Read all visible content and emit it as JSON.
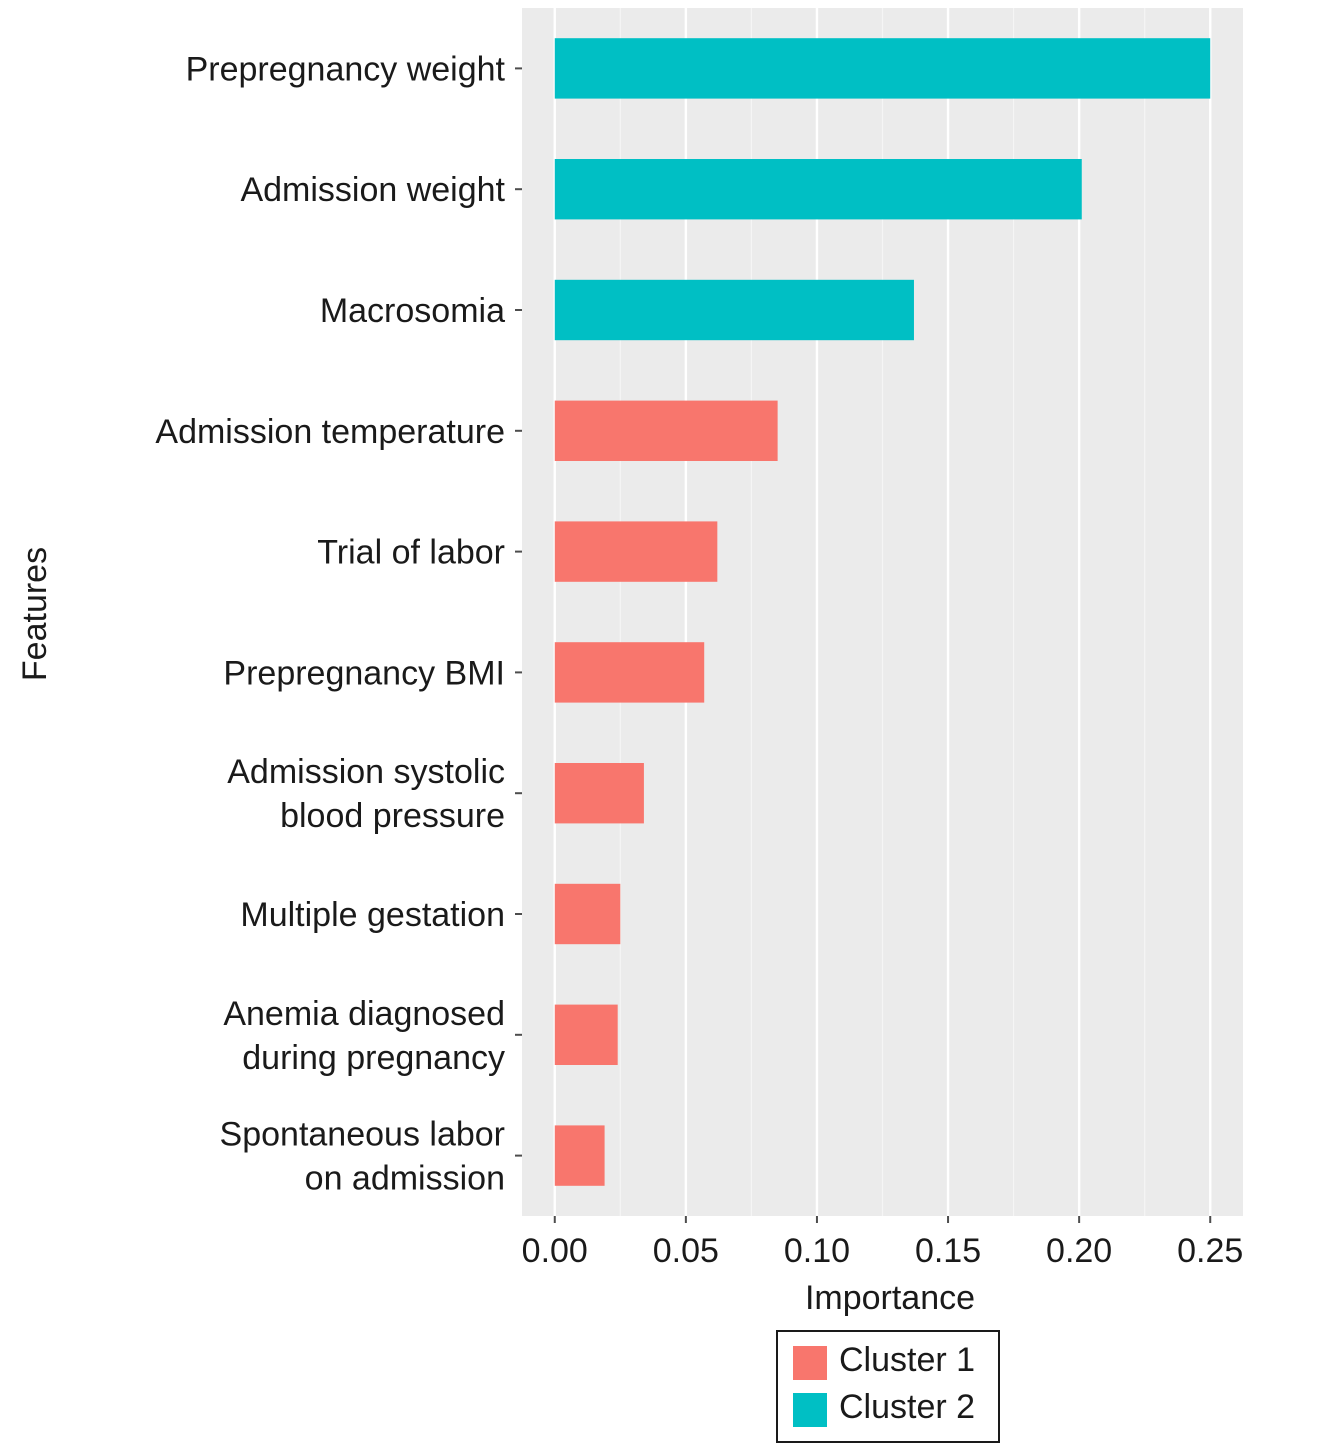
{
  "chart_data": {
    "type": "bar",
    "orientation": "horizontal",
    "title": "",
    "xlabel": "Importance",
    "ylabel": "Features",
    "xlim": [
      -0.0125,
      0.2625
    ],
    "x_ticks": [
      0.0,
      0.05,
      0.1,
      0.15,
      0.2,
      0.25
    ],
    "x_tick_labels": [
      "0.00",
      "0.05",
      "0.10",
      "0.15",
      "0.20",
      "0.25"
    ],
    "grid": true,
    "categories": [
      [
        "Prepregnancy weight"
      ],
      [
        "Admission weight"
      ],
      [
        "Macrosomia"
      ],
      [
        "Admission temperature"
      ],
      [
        "Trial of labor"
      ],
      [
        "Prepregnancy BMI"
      ],
      [
        "Admission systolic",
        "blood pressure"
      ],
      [
        "Multiple gestation"
      ],
      [
        "Anemia diagnosed",
        "during pregnancy"
      ],
      [
        "Spontaneous labor",
        "on admission"
      ]
    ],
    "values": [
      0.25,
      0.201,
      0.137,
      0.085,
      0.062,
      0.057,
      0.034,
      0.025,
      0.024,
      0.019
    ],
    "clusters": [
      "Cluster 2",
      "Cluster 2",
      "Cluster 2",
      "Cluster 1",
      "Cluster 1",
      "Cluster 1",
      "Cluster 1",
      "Cluster 1",
      "Cluster 1",
      "Cluster 1"
    ],
    "legend": {
      "position": "bottom",
      "entries": [
        {
          "name": "Cluster 1",
          "color": "#F8766D"
        },
        {
          "name": "Cluster 2",
          "color": "#00BFC4"
        }
      ]
    },
    "colors": {
      "panel": "#EBEBEB",
      "grid_major": "#FFFFFF",
      "grid_minor": "#F5F5F5",
      "tick": "#4D4D4D",
      "text": "#1A1A1A"
    }
  }
}
